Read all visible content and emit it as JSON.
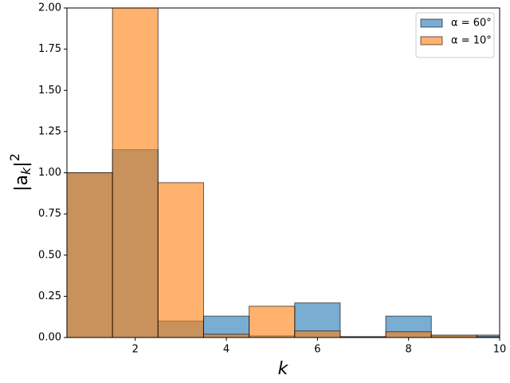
{
  "chart_data": {
    "type": "bar",
    "x_label": "k",
    "y_label": [
      "|a",
      "k",
      "|",
      "2"
    ],
    "x": [
      1,
      2,
      3,
      4,
      5,
      6,
      7,
      8,
      9,
      10
    ],
    "bar_width": 1,
    "series": [
      {
        "name": "α = 60°",
        "color": "#1f77b4",
        "values": [
          1.0,
          1.14,
          0.1,
          0.13,
          0.01,
          0.21,
          0.005,
          0.13,
          0.01,
          0.015
        ]
      },
      {
        "name": "α = 10°",
        "color": "#ff7f0e",
        "values": [
          1.0,
          2.0,
          0.94,
          0.02,
          0.19,
          0.04,
          0.005,
          0.035,
          0.015,
          0.005
        ]
      }
    ],
    "alpha": 0.6,
    "edge_color": "#000000",
    "xlim": [
      0.5,
      10
    ],
    "ylim": [
      0,
      2
    ],
    "xticks": [
      2,
      4,
      6,
      8,
      10
    ],
    "yticks": [
      {
        "value": 0,
        "label": "0.00"
      },
      {
        "value": 0.25,
        "label": "0.25"
      },
      {
        "value": 0.5,
        "label": "0.50"
      },
      {
        "value": 0.75,
        "label": "0.75"
      },
      {
        "value": 1,
        "label": "1.00"
      },
      {
        "value": 1.25,
        "label": "1.25"
      },
      {
        "value": 1.5,
        "label": "1.50"
      },
      {
        "value": 1.75,
        "label": "1.75"
      },
      {
        "value": 2,
        "label": "2.00"
      }
    ],
    "legend": "upper right"
  }
}
